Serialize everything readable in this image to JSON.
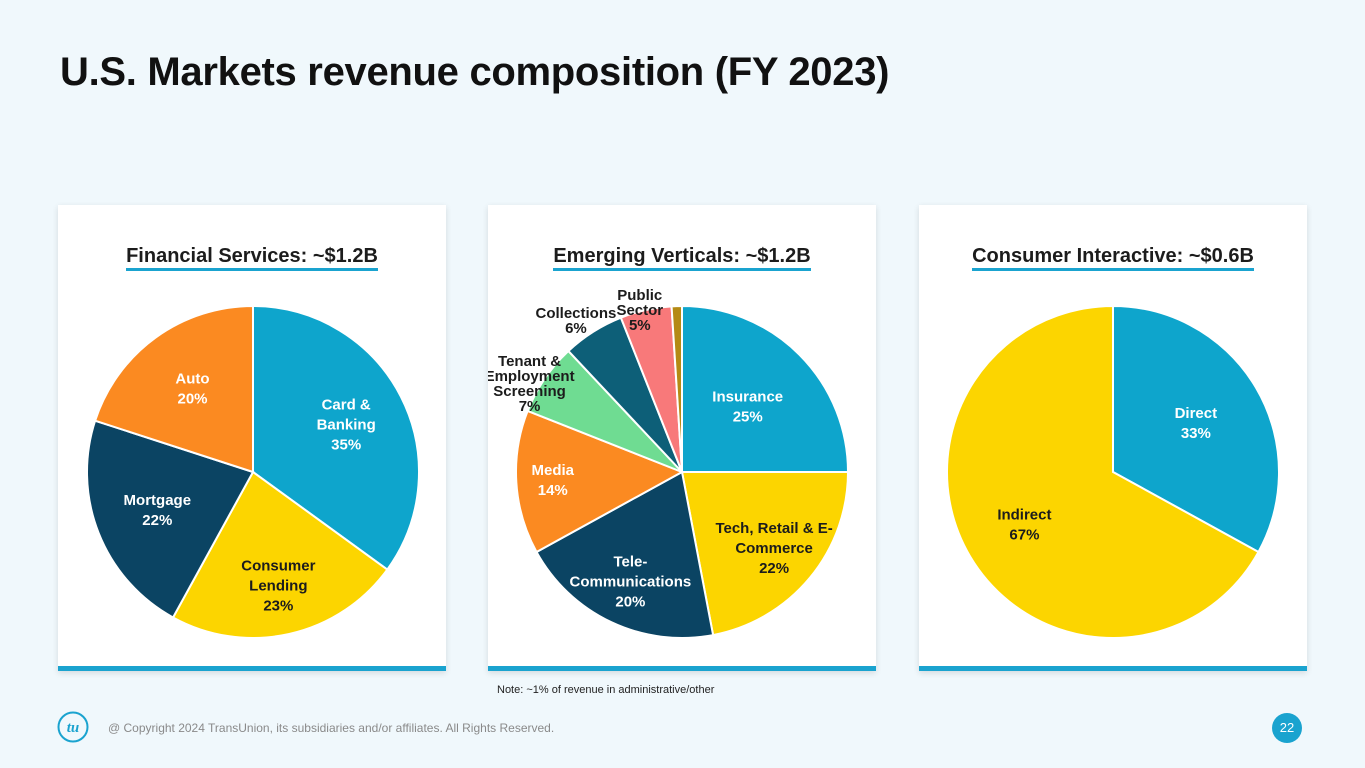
{
  "title": "U.S. Markets revenue composition (FY 2023)",
  "note": "Note: ~1% of revenue in administrative/other",
  "copyright": "@ Copyright 2024 TransUnion, its subsidiaries and/or affiliates.  All Rights Reserved.",
  "page_number": "22",
  "logo_icon": "tu-logo-icon",
  "colors": {
    "accent": "#1aa3cf",
    "blue": "#0ea5cc",
    "yellow": "#fcd500",
    "navy": "#0b4463",
    "orange": "#fb8a21",
    "green": "#6fdc92",
    "teal": "#0d5f78",
    "pink": "#f8797a",
    "gold": "#b48a14"
  },
  "chart_data": [
    {
      "type": "pie",
      "title": "Financial Services: ~$1.2B",
      "slices": [
        {
          "label": "Card & Banking",
          "lines": [
            "Card &",
            "Banking",
            "35%"
          ],
          "value": 35,
          "color": "#0ea5cc",
          "text_color": "#ffffff"
        },
        {
          "label": "Consumer Lending",
          "lines": [
            "Consumer",
            "Lending",
            "23%"
          ],
          "value": 23,
          "color": "#fcd500",
          "text_color": "#1c1c1c"
        },
        {
          "label": "Mortgage",
          "lines": [
            "Mortgage",
            "22%"
          ],
          "value": 22,
          "color": "#0b4463",
          "text_color": "#ffffff"
        },
        {
          "label": "Auto",
          "lines": [
            "Auto",
            "20%"
          ],
          "value": 20,
          "color": "#fb8a21",
          "text_color": "#ffffff"
        }
      ]
    },
    {
      "type": "pie",
      "title": "Emerging Verticals: ~$1.2B",
      "slices": [
        {
          "label": "Insurance",
          "lines": [
            "Insurance",
            "25%"
          ],
          "value": 25,
          "color": "#0ea5cc",
          "text_color": "#ffffff"
        },
        {
          "label": "Tech, Retail & E-Commerce",
          "lines": [
            "Tech, Retail & E-",
            "Commerce",
            "22%"
          ],
          "value": 22,
          "color": "#fcd500",
          "text_color": "#1c1c1c"
        },
        {
          "label": "Tele-Communications",
          "lines": [
            "Tele-",
            "Communications",
            "20%"
          ],
          "value": 20,
          "color": "#0b4463",
          "text_color": "#ffffff"
        },
        {
          "label": "Media",
          "lines": [
            "Media",
            "14%"
          ],
          "value": 14,
          "color": "#fb8a21",
          "text_color": "#ffffff"
        },
        {
          "label": "Tenant & Employment Screening",
          "lines": [
            "Tenant &",
            "Employment",
            "Screening",
            "7%"
          ],
          "value": 7,
          "color": "#6fdc92",
          "text_color": "#1c1c1c"
        },
        {
          "label": "Collections",
          "lines": [
            "Collections",
            "6%"
          ],
          "value": 6,
          "color": "#0d5f78",
          "text_color": "#1c1c1c"
        },
        {
          "label": "Public Sector",
          "lines": [
            "Public",
            "Sector",
            "5%"
          ],
          "value": 5,
          "color": "#f8797a",
          "text_color": "#1c1c1c"
        },
        {
          "label": "",
          "lines": [],
          "value": 1,
          "color": "#b48a14",
          "text_color": "#1c1c1c"
        }
      ]
    },
    {
      "type": "pie",
      "title": "Consumer Interactive: ~$0.6B",
      "slices": [
        {
          "label": "Direct",
          "lines": [
            "Direct",
            "33%"
          ],
          "value": 33,
          "color": "#0ea5cc",
          "text_color": "#ffffff"
        },
        {
          "label": "Indirect",
          "lines": [
            "Indirect",
            "67%"
          ],
          "value": 67,
          "color": "#fcd500",
          "text_color": "#1c1c1c"
        }
      ]
    }
  ]
}
